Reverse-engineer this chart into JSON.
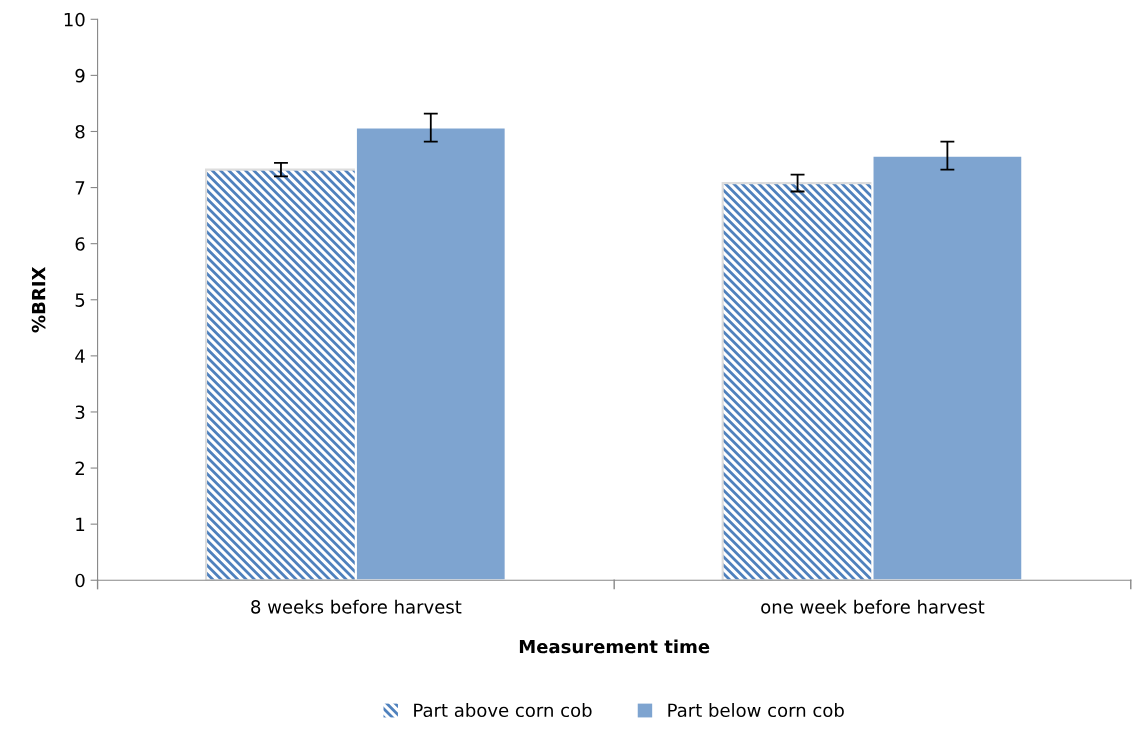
{
  "chart_data": {
    "type": "bar",
    "xlabel": "Measurement time",
    "ylabel": "%BRIX",
    "categories": [
      "8 weeks before harvest",
      "one week before harvest"
    ],
    "series": [
      {
        "name": "Part above corn cob",
        "color": "#4f81bd",
        "values": [
          7.32,
          7.08
        ],
        "errors": [
          0.12,
          0.15
        ]
      },
      {
        "name": "Part below corn cob",
        "color": "#7ea4d0",
        "values": [
          8.07,
          7.57
        ],
        "errors": [
          0.25,
          0.25
        ]
      }
    ],
    "ylim": [
      0,
      10
    ],
    "yticks": [
      0,
      1,
      2,
      3,
      4,
      5,
      6,
      7,
      8,
      9,
      10
    ],
    "grid": false,
    "legend": "bottom"
  }
}
